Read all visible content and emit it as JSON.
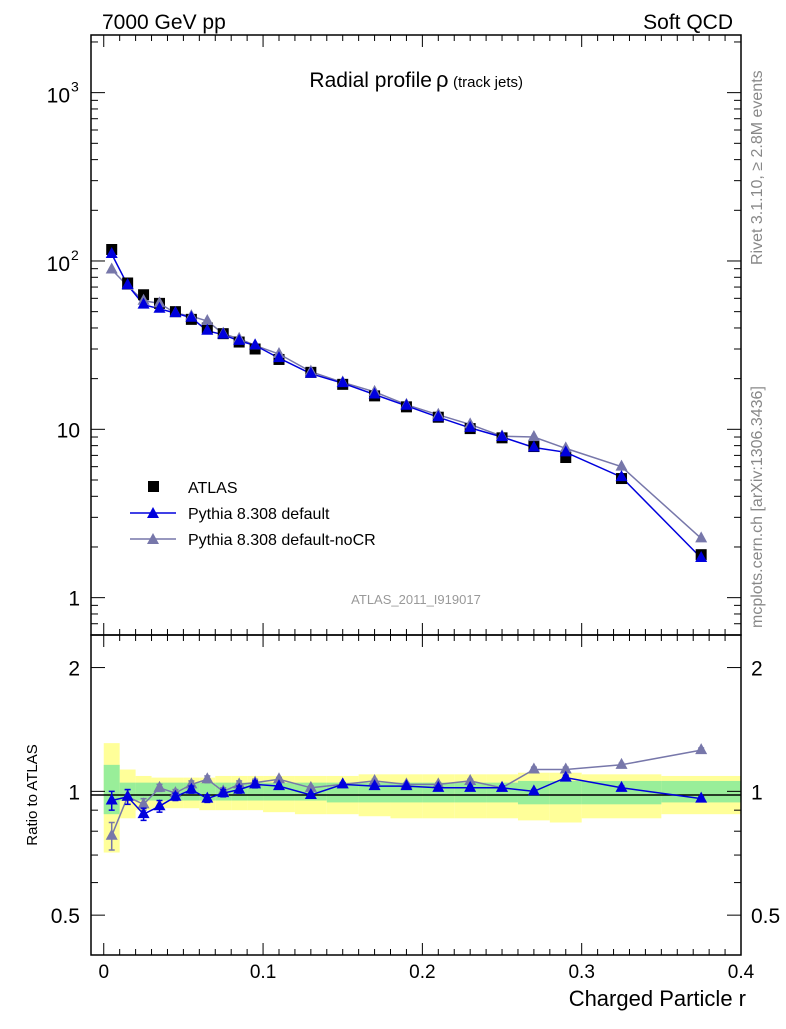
{
  "header": {
    "left": "7000 GeV pp",
    "right": "Soft QCD"
  },
  "side_text": {
    "top": "Rivet 3.1.10, ≥ 2.8M events",
    "bottom": "mcplots.cern.ch [arXiv:1306.3436]"
  },
  "chart_data": {
    "type": "scatter",
    "title": "Radial profile",
    "title_symbol": "ρ",
    "title_suffix": "(track jets)",
    "analysis_label": "ATLAS_2011_I919017",
    "xlabel": "Charged Particle r",
    "ylabel_ratio": "Ratio to ATLAS",
    "xlim": [
      -0.008,
      0.4
    ],
    "ylim_main": [
      0.6,
      2200
    ],
    "y_scale_main": "log",
    "ylim_ratio": [
      0.4,
      2.4
    ],
    "y_scale_ratio": "log",
    "x_ticks": [
      {
        "value": 0,
        "label": "0"
      },
      {
        "value": 0.1,
        "label": "0.1"
      },
      {
        "value": 0.2,
        "label": "0.2"
      },
      {
        "value": 0.3,
        "label": "0.3"
      },
      {
        "value": 0.4,
        "label": "0.4"
      }
    ],
    "y_ticks_main": [
      {
        "value": 1,
        "label": "1"
      },
      {
        "value": 10,
        "label": "10"
      },
      {
        "value": 100,
        "label": "10",
        "exp": "2"
      },
      {
        "value": 1000,
        "label": "10",
        "exp": "3"
      }
    ],
    "y_ticks_ratio": [
      {
        "value": 0.5,
        "label": "0.5"
      },
      {
        "value": 1,
        "label": "1"
      },
      {
        "value": 2,
        "label": "2"
      }
    ],
    "legend_position": "bottom-left",
    "x": [
      0.005,
      0.015,
      0.025,
      0.035,
      0.045,
      0.055,
      0.065,
      0.075,
      0.085,
      0.095,
      0.11,
      0.13,
      0.15,
      0.17,
      0.19,
      0.21,
      0.23,
      0.25,
      0.27,
      0.29,
      0.325,
      0.375
    ],
    "band_edges": [
      0,
      0.01,
      0.02,
      0.03,
      0.04,
      0.05,
      0.06,
      0.07,
      0.08,
      0.09,
      0.1,
      0.12,
      0.14,
      0.16,
      0.18,
      0.2,
      0.22,
      0.24,
      0.26,
      0.28,
      0.3,
      0.35,
      0.4
    ],
    "band_outer": [
      [
        0.71,
        1.31
      ],
      [
        0.86,
        1.13
      ],
      [
        0.9,
        1.09
      ],
      [
        0.91,
        1.08
      ],
      [
        0.91,
        1.08
      ],
      [
        0.91,
        1.08
      ],
      [
        0.9,
        1.08
      ],
      [
        0.9,
        1.09
      ],
      [
        0.9,
        1.09
      ],
      [
        0.9,
        1.09
      ],
      [
        0.89,
        1.09
      ],
      [
        0.88,
        1.09
      ],
      [
        0.88,
        1.09
      ],
      [
        0.87,
        1.1
      ],
      [
        0.86,
        1.1
      ],
      [
        0.86,
        1.1
      ],
      [
        0.86,
        1.1
      ],
      [
        0.86,
        1.1
      ],
      [
        0.85,
        1.11
      ],
      [
        0.84,
        1.11
      ],
      [
        0.86,
        1.1
      ],
      [
        0.88,
        1.09
      ]
    ],
    "band_inner": [
      [
        0.88,
        1.16
      ],
      [
        0.95,
        1.05
      ],
      [
        0.95,
        1.05
      ],
      [
        0.95,
        1.05
      ],
      [
        0.95,
        1.05
      ],
      [
        0.95,
        1.05
      ],
      [
        0.95,
        1.05
      ],
      [
        0.95,
        1.05
      ],
      [
        0.95,
        1.05
      ],
      [
        0.95,
        1.05
      ],
      [
        0.95,
        1.05
      ],
      [
        0.95,
        1.05
      ],
      [
        0.94,
        1.05
      ],
      [
        0.94,
        1.05
      ],
      [
        0.94,
        1.05
      ],
      [
        0.94,
        1.05
      ],
      [
        0.94,
        1.05
      ],
      [
        0.94,
        1.05
      ],
      [
        0.93,
        1.06
      ],
      [
        0.93,
        1.06
      ],
      [
        0.93,
        1.06
      ],
      [
        0.94,
        1.06
      ]
    ],
    "series": [
      {
        "name": "ATLAS",
        "color": "#000000",
        "marker": "square",
        "values": [
          117,
          74,
          63,
          56,
          50,
          45,
          40,
          37,
          33,
          30,
          26,
          21.8,
          18.5,
          15.8,
          13.6,
          11.8,
          10.1,
          8.9,
          7.9,
          6.8,
          5.1,
          1.8
        ]
      },
      {
        "name": "Pythia 8.308 default",
        "color": "#0000dd",
        "marker": "triangle",
        "values": [
          110,
          72,
          55,
          52,
          49,
          46,
          38.5,
          36.5,
          33.5,
          31.5,
          26.5,
          21.4,
          18.8,
          16.1,
          13.8,
          11.8,
          10.2,
          9.0,
          7.8,
          7.3,
          5.2,
          1.72
        ],
        "ratio": [
          0.95,
          0.97,
          0.88,
          0.92,
          0.97,
          1.01,
          0.96,
          0.99,
          1.01,
          1.04,
          1.03,
          0.98,
          1.04,
          1.03,
          1.03,
          1.02,
          1.02,
          1.02,
          1.0,
          1.08,
          1.02,
          0.96
        ],
        "ratio_err": [
          0.05,
          0.04,
          0.03,
          0.03,
          0.02,
          0.02,
          0.02,
          0.02,
          0.02,
          0.02,
          0.01,
          0.01,
          0.01,
          0.01,
          0.01,
          0.01,
          0.01,
          0.01,
          0.01,
          0.015,
          0.01,
          0.01
        ]
      },
      {
        "name": "Pythia 8.308 default-noCR",
        "color": "#7777aa",
        "marker": "triangle",
        "values": [
          89,
          71,
          58,
          56,
          49,
          47,
          44,
          37,
          34.5,
          31.5,
          28,
          22,
          19,
          16.7,
          14,
          12.2,
          10.7,
          9.1,
          9.0,
          7.7,
          6.0,
          2.25
        ],
        "ratio": [
          0.78,
          0.97,
          0.93,
          1.02,
          0.99,
          1.04,
          1.07,
          1.0,
          1.04,
          1.05,
          1.07,
          1.02,
          1.04,
          1.06,
          1.04,
          1.04,
          1.06,
          1.02,
          1.13,
          1.13,
          1.16,
          1.26
        ],
        "ratio_err": [
          0.06,
          0.04,
          0.03,
          0.02,
          0.02,
          0.02,
          0.02,
          0.02,
          0.02,
          0.02,
          0.01,
          0.01,
          0.01,
          0.01,
          0.01,
          0.01,
          0.01,
          0.01,
          0.015,
          0.015,
          0.01,
          0.015
        ]
      }
    ]
  }
}
